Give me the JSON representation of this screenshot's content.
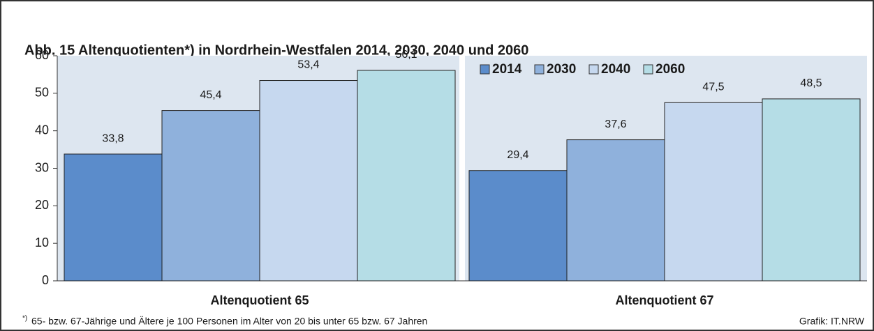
{
  "chart_data": {
    "type": "bar",
    "title": "Abb. 15   Altenquotienten*) in Nordrhein-Westfalen 2014, 2030, 2040 und 2060",
    "categories": [
      "Altenquotient 65",
      "Altenquotient 67"
    ],
    "series": [
      {
        "name": "2014",
        "color": "#5b8ccb",
        "values": [
          33.8,
          29.4
        ],
        "value_labels": [
          "33,8",
          "29,4"
        ]
      },
      {
        "name": "2030",
        "color": "#8fb1dc",
        "values": [
          45.4,
          37.6
        ],
        "value_labels": [
          "45,4",
          "37,6"
        ]
      },
      {
        "name": "2040",
        "color": "#c6d8ef",
        "values": [
          53.4,
          47.5
        ],
        "value_labels": [
          "53,4",
          "47,5"
        ]
      },
      {
        "name": "2060",
        "color": "#b5dde6",
        "values": [
          56.1,
          48.5
        ],
        "value_labels": [
          "56,1",
          "48,5"
        ]
      }
    ],
    "ylim": [
      0,
      60
    ],
    "yticks": [
      0,
      10,
      20,
      30,
      40,
      50,
      60
    ],
    "footnote_marker": "*)",
    "footnote": "65- bzw. 67-Jährige und Ältere je 100 Personen im Alter von 20 bis unter 65 bzw. 67 Jahren",
    "source": "Grafik: IT.NRW"
  }
}
